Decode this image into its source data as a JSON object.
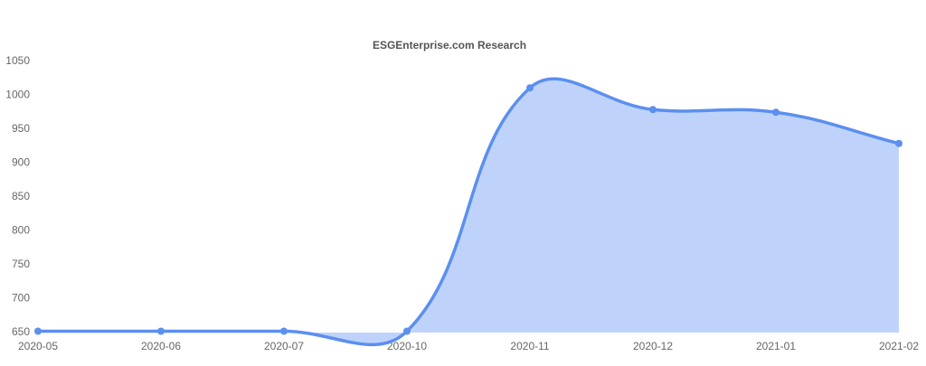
{
  "chart_data": {
    "type": "area",
    "title": "ESGEnterprise.com Research",
    "categories": [
      "2020-05",
      "2020-06",
      "2020-07",
      "2020-10",
      "2020-11",
      "2020-12",
      "2021-01",
      "2021-02"
    ],
    "values": [
      652,
      652,
      652,
      652,
      1011,
      979,
      975,
      929
    ],
    "color": "#5b8ff0",
    "fill": "#bfd3fa",
    "ylim": [
      650,
      1050
    ],
    "yticks": [
      650,
      700,
      750,
      800,
      850,
      900,
      950,
      1000,
      1050
    ]
  }
}
